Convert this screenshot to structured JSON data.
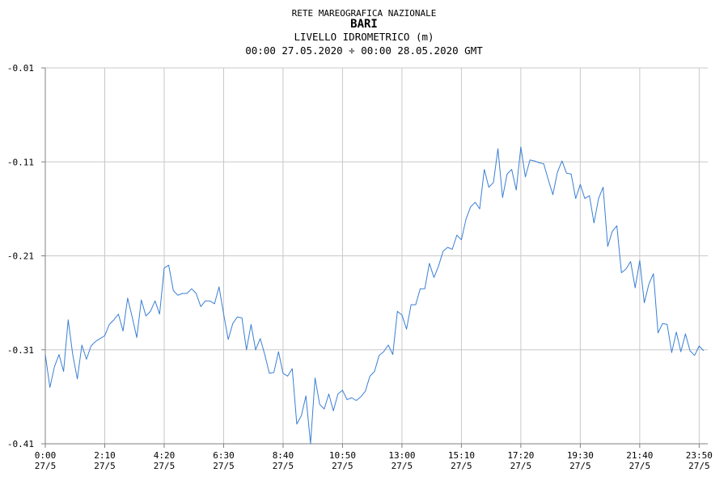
{
  "header": {
    "network": "RETE MAREOGRAFICA NAZIONALE",
    "station": "BARI",
    "quantity": "LIVELLO IDROMETRICO (m)",
    "period": "00:00 27.05.2020 ÷ 00:00 28.05.2020 GMT"
  },
  "colors": {
    "line": "#3a7fd5",
    "grid": "#c8c8c8",
    "axis": "#808080"
  },
  "chart_data": {
    "type": "line",
    "title": "BARI",
    "ylabel": "LIVELLO IDROMETRICO (m)",
    "ylim": [
      -0.41,
      -0.01
    ],
    "yticks": [
      -0.01,
      -0.11,
      -0.21,
      -0.31,
      -0.41
    ],
    "ytick_labels": [
      "-0.01",
      "-0.11",
      "-0.21",
      "-0.31",
      "-0.41"
    ],
    "xlim": [
      "0:00",
      "24:00"
    ],
    "xticks": [
      {
        "time": "0:00",
        "date": "27/5"
      },
      {
        "time": "2:10",
        "date": "27/5"
      },
      {
        "time": "4:20",
        "date": "27/5"
      },
      {
        "time": "6:30",
        "date": "27/5"
      },
      {
        "time": "8:40",
        "date": "27/5"
      },
      {
        "time": "10:50",
        "date": "27/5"
      },
      {
        "time": "13:00",
        "date": "27/5"
      },
      {
        "time": "15:10",
        "date": "27/5"
      },
      {
        "time": "17:20",
        "date": "27/5"
      },
      {
        "time": "19:30",
        "date": "27/5"
      },
      {
        "time": "21:40",
        "date": "27/5"
      },
      {
        "time": "23:50",
        "date": "27/5"
      }
    ],
    "grid": true,
    "series": [
      {
        "x": [
          "0:00",
          "0:10",
          "0:20",
          "0:30",
          "0:40",
          "0:50",
          "1:00",
          "1:10",
          "1:20",
          "1:30",
          "1:40",
          "1:50",
          "2:00",
          "2:10",
          "2:20",
          "2:30",
          "2:40",
          "2:50",
          "3:00",
          "3:10",
          "3:20",
          "3:30",
          "3:40",
          "3:50",
          "4:00",
          "4:10",
          "4:20",
          "4:30",
          "4:40",
          "4:50",
          "5:00",
          "5:10",
          "5:20",
          "5:30",
          "5:40",
          "5:50",
          "6:00",
          "6:10",
          "6:20",
          "6:30",
          "6:40",
          "6:50",
          "7:00",
          "7:10",
          "7:20",
          "7:30",
          "7:40",
          "7:50",
          "8:00",
          "8:10",
          "8:20",
          "8:30",
          "8:40",
          "8:50",
          "9:00",
          "9:10",
          "9:20",
          "9:30",
          "9:40",
          "9:50",
          "10:00",
          "10:10",
          "10:20",
          "10:30",
          "10:40",
          "10:50",
          "11:00",
          "11:10",
          "11:20",
          "11:30",
          "11:40",
          "11:50",
          "12:00",
          "12:10",
          "12:20",
          "12:30",
          "12:40",
          "12:50",
          "13:00",
          "13:10",
          "13:20",
          "13:30",
          "13:40",
          "13:50",
          "14:00",
          "14:10",
          "14:20",
          "14:30",
          "14:40",
          "14:50",
          "15:00",
          "15:10",
          "15:20",
          "15:30",
          "15:40",
          "15:50",
          "16:00",
          "16:10",
          "16:20",
          "16:30",
          "16:40",
          "16:50",
          "17:00",
          "17:10",
          "17:20",
          "17:30",
          "17:40",
          "17:50",
          "18:00",
          "18:10",
          "18:20",
          "18:30",
          "18:40",
          "18:50",
          "19:00",
          "19:10",
          "19:20",
          "19:30",
          "19:40",
          "19:50",
          "20:00",
          "20:10",
          "20:20",
          "20:30",
          "20:40",
          "20:50",
          "21:00",
          "21:10",
          "21:20",
          "21:30",
          "21:40",
          "21:50",
          "22:00",
          "22:10",
          "22:20",
          "22:30",
          "22:40",
          "22:50",
          "23:00",
          "23:10",
          "23:20",
          "23:30",
          "23:40",
          "23:50",
          "24:00"
        ],
        "values": [
          -0.315,
          -0.35,
          -0.328,
          -0.315,
          -0.333,
          -0.278,
          -0.315,
          -0.341,
          -0.305,
          -0.32,
          -0.306,
          -0.301,
          -0.298,
          -0.295,
          -0.283,
          -0.278,
          -0.272,
          -0.29,
          -0.255,
          -0.275,
          -0.297,
          -0.257,
          -0.274,
          -0.269,
          -0.258,
          -0.272,
          -0.223,
          -0.22,
          -0.247,
          -0.252,
          -0.25,
          -0.25,
          -0.245,
          -0.25,
          -0.264,
          -0.258,
          -0.258,
          -0.261,
          -0.243,
          -0.272,
          -0.299,
          -0.282,
          -0.275,
          -0.276,
          -0.31,
          -0.283,
          -0.31,
          -0.298,
          -0.315,
          -0.335,
          -0.334,
          -0.312,
          -0.335,
          -0.338,
          -0.33,
          -0.389,
          -0.38,
          -0.359,
          -0.41,
          -0.34,
          -0.368,
          -0.373,
          -0.357,
          -0.375,
          -0.357,
          -0.353,
          -0.363,
          -0.361,
          -0.364,
          -0.36,
          -0.354,
          -0.338,
          -0.333,
          -0.316,
          -0.312,
          -0.305,
          -0.315,
          -0.269,
          -0.273,
          -0.288,
          -0.262,
          -0.262,
          -0.245,
          -0.245,
          -0.218,
          -0.233,
          -0.221,
          -0.205,
          -0.201,
          -0.203,
          -0.188,
          -0.193,
          -0.171,
          -0.158,
          -0.153,
          -0.16,
          -0.118,
          -0.137,
          -0.132,
          -0.096,
          -0.148,
          -0.123,
          -0.118,
          -0.14,
          -0.094,
          -0.126,
          -0.108,
          -0.109,
          -0.111,
          -0.112,
          -0.129,
          -0.145,
          -0.121,
          -0.109,
          -0.122,
          -0.123,
          -0.149,
          -0.134,
          -0.149,
          -0.146,
          -0.175,
          -0.149,
          -0.137,
          -0.2,
          -0.184,
          -0.178,
          -0.228,
          -0.224,
          -0.216,
          -0.244,
          -0.215,
          -0.26,
          -0.24,
          -0.229,
          -0.292,
          -0.282,
          -0.283,
          -0.313,
          -0.291,
          -0.312,
          -0.293,
          -0.311,
          -0.316,
          -0.306,
          -0.311
        ]
      }
    ]
  }
}
